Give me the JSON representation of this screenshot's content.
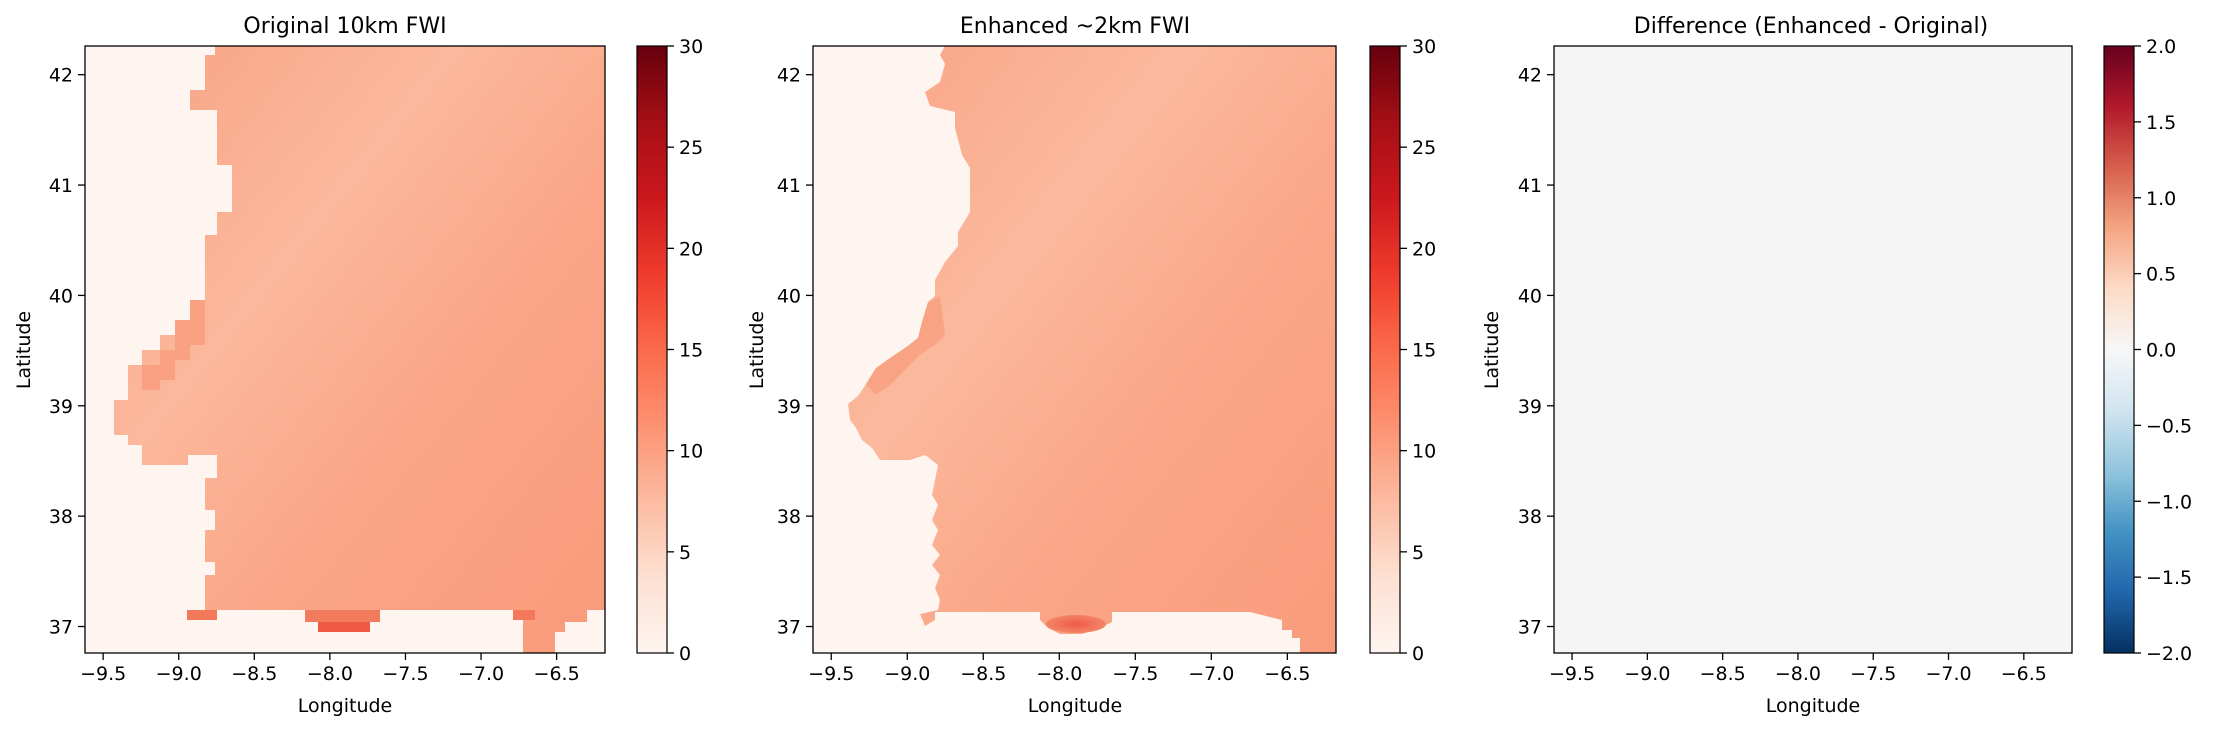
{
  "chart_data": [
    {
      "type": "heatmap",
      "title": "Original 10km FWI",
      "xlabel": "Longitude",
      "ylabel": "Latitude",
      "xlim": [
        -9.62,
        -6.18
      ],
      "ylim": [
        36.76,
        42.26
      ],
      "xticks": [
        -9.5,
        -9.0,
        -8.5,
        -8.0,
        -7.5,
        -7.0,
        -6.5
      ],
      "xtick_labels": [
        "−9.5",
        "−9.0",
        "−8.5",
        "−8.0",
        "−7.5",
        "−7.0",
        "−6.5"
      ],
      "yticks": [
        37,
        38,
        39,
        40,
        41,
        42
      ],
      "ytick_labels": [
        "37",
        "38",
        "39",
        "40",
        "41",
        "42"
      ],
      "colormap": "Reds",
      "colorbar_range": [
        0,
        30
      ],
      "colorbar_ticks": [
        0,
        5,
        10,
        15,
        20,
        25,
        30
      ],
      "colorbar_tick_labels": [
        "0",
        "5",
        "10",
        "15",
        "20",
        "25",
        "30"
      ],
      "typical_value": 9,
      "hotspot": {
        "lon": -8.0,
        "lat": 37.0,
        "value": 15
      },
      "rendering": "blocky"
    },
    {
      "type": "heatmap",
      "title": "Enhanced ~2km FWI",
      "xlabel": "Longitude",
      "ylabel": "Latitude",
      "xlim": [
        -9.62,
        -6.18
      ],
      "ylim": [
        36.76,
        42.26
      ],
      "xticks": [
        -9.5,
        -9.0,
        -8.5,
        -8.0,
        -7.5,
        -7.0,
        -6.5
      ],
      "xtick_labels": [
        "−9.5",
        "−9.0",
        "−8.5",
        "−8.0",
        "−7.5",
        "−7.0",
        "−6.5"
      ],
      "yticks": [
        37,
        38,
        39,
        40,
        41,
        42
      ],
      "ytick_labels": [
        "37",
        "38",
        "39",
        "40",
        "41",
        "42"
      ],
      "colormap": "Reds",
      "colorbar_range": [
        0,
        30
      ],
      "colorbar_ticks": [
        0,
        5,
        10,
        15,
        20,
        25,
        30
      ],
      "colorbar_tick_labels": [
        "0",
        "5",
        "10",
        "15",
        "20",
        "25",
        "30"
      ],
      "typical_value": 9,
      "hotspot": {
        "lon": -7.9,
        "lat": 37.0,
        "value": 15
      },
      "rendering": "smooth"
    },
    {
      "type": "heatmap",
      "title": "Difference (Enhanced - Original)",
      "xlabel": "Longitude",
      "ylabel": "Latitude",
      "xlim": [
        -9.62,
        -6.18
      ],
      "ylim": [
        36.76,
        42.26
      ],
      "xticks": [
        -9.5,
        -9.0,
        -8.5,
        -8.0,
        -7.5,
        -7.0,
        -6.5
      ],
      "xtick_labels": [
        "−9.5",
        "−9.0",
        "−8.5",
        "−8.0",
        "−7.5",
        "−7.0",
        "−6.5"
      ],
      "yticks": [
        37,
        38,
        39,
        40,
        41,
        42
      ],
      "ytick_labels": [
        "37",
        "38",
        "39",
        "40",
        "41",
        "42"
      ],
      "colormap": "RdBu_r",
      "colorbar_range": [
        -2.0,
        2.0
      ],
      "colorbar_ticks": [
        -2.0,
        -1.5,
        -1.0,
        -0.5,
        0.0,
        0.5,
        1.0,
        1.5,
        2.0
      ],
      "colorbar_tick_labels": [
        "−2.0",
        "−1.5",
        "−1.0",
        "−0.5",
        "0.0",
        "0.5",
        "1.0",
        "1.5",
        "2.0"
      ],
      "typical_value": 0.0
    }
  ],
  "colors": {
    "land_low": "#fdd3c0",
    "land_mid": "#fcab8f",
    "land_high": "#f9936f",
    "land_edge": "#f4795a",
    "hotspot": "#ee5a45",
    "sea": "#fff5f0",
    "difference_fill": "#f5f5f5"
  }
}
